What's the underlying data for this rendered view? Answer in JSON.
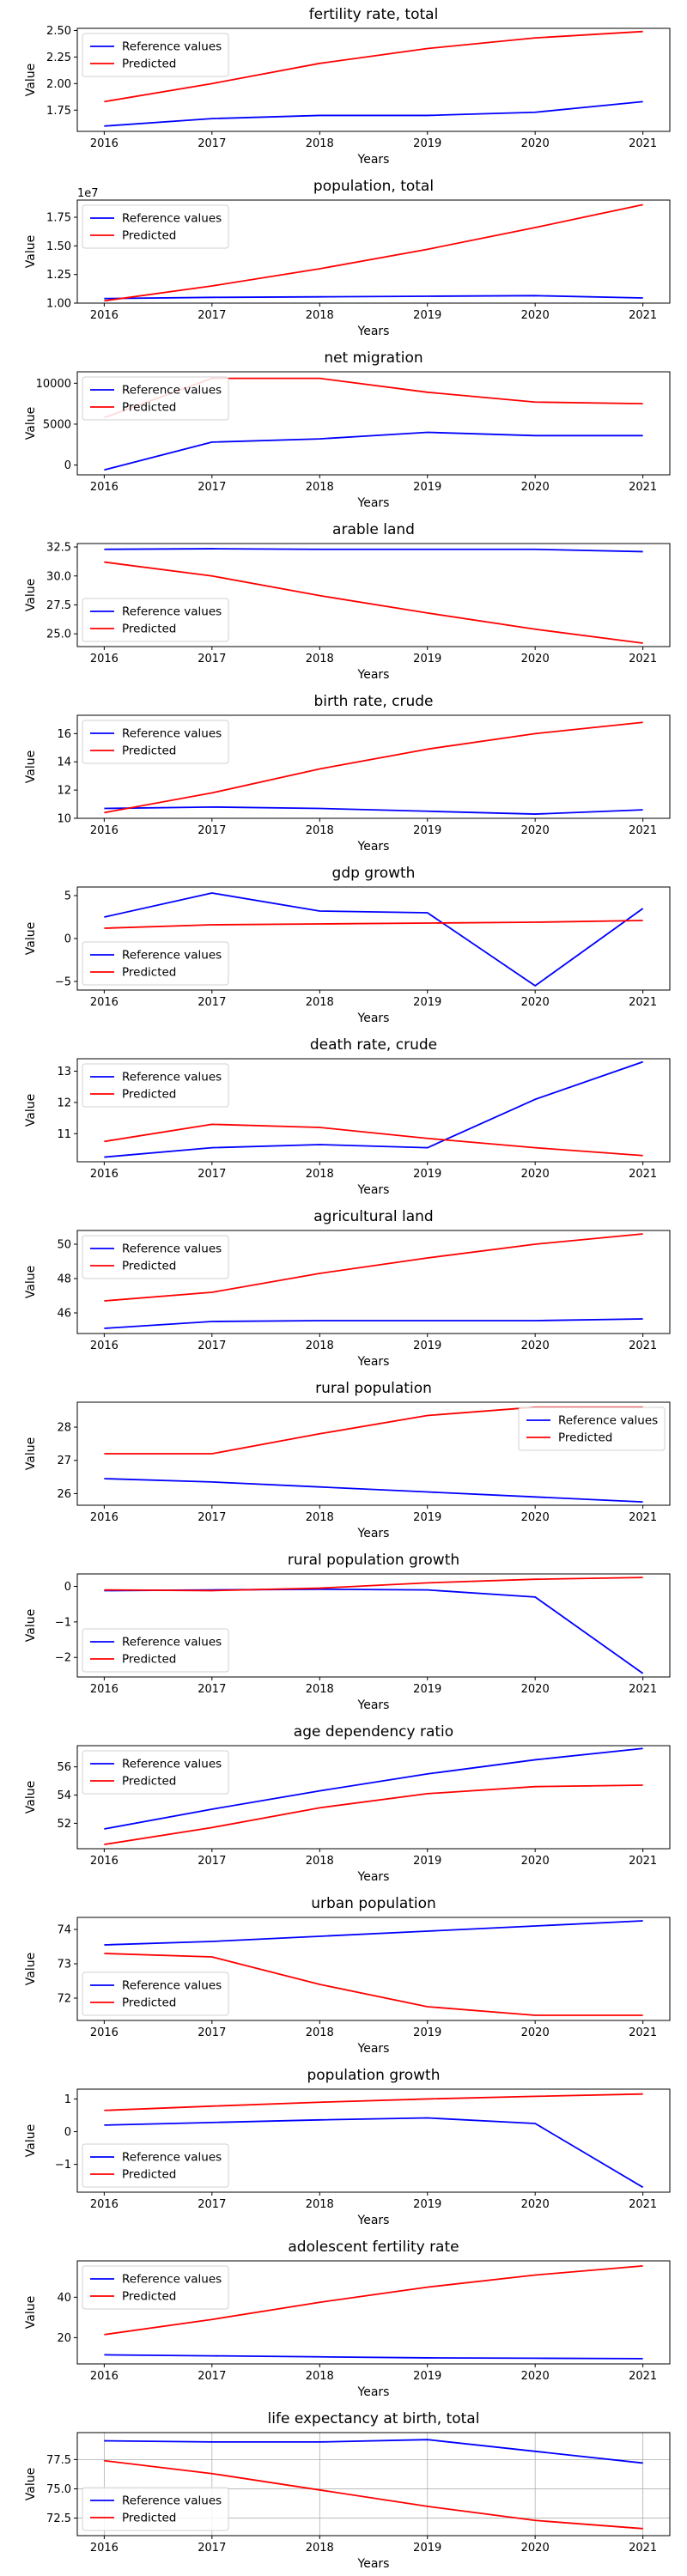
{
  "colors": {
    "reference": "#0000ff",
    "predicted": "#ff0000"
  },
  "chart_data": [
    {
      "type": "line",
      "title": "fertility rate, total",
      "xlabel": "Years",
      "ylabel": "Value",
      "x": [
        2016,
        2017,
        2018,
        2019,
        2020,
        2021
      ],
      "ylim": [
        1.55,
        2.52
      ],
      "yticks": [
        1.75,
        2.0,
        2.25,
        2.5
      ],
      "ytick_labels": [
        "1.75",
        "2.00",
        "2.25",
        "2.50"
      ],
      "legend": "upper left",
      "grid": false,
      "series": [
        {
          "name": "Reference values",
          "color": "reference",
          "values": [
            1.6,
            1.67,
            1.7,
            1.7,
            1.73,
            1.83
          ]
        },
        {
          "name": "Predicted",
          "color": "predicted",
          "values": [
            1.83,
            2.0,
            2.19,
            2.33,
            2.43,
            2.49
          ]
        }
      ]
    },
    {
      "type": "line",
      "title": "population, total",
      "xlabel": "Years",
      "ylabel": "Value",
      "x": [
        2016,
        2017,
        2018,
        2019,
        2020,
        2021
      ],
      "ylim": [
        1.0,
        1.9
      ],
      "offset": "1e7",
      "yticks": [
        1.0,
        1.25,
        1.5,
        1.75
      ],
      "ytick_labels": [
        "1.00",
        "1.25",
        "1.50",
        "1.75"
      ],
      "legend": "upper left",
      "grid": false,
      "series": [
        {
          "name": "Reference values",
          "color": "reference",
          "values": [
            1.04,
            1.05,
            1.055,
            1.06,
            1.065,
            1.045
          ]
        },
        {
          "name": "Predicted",
          "color": "predicted",
          "values": [
            1.02,
            1.15,
            1.3,
            1.47,
            1.66,
            1.86
          ]
        }
      ]
    },
    {
      "type": "line",
      "title": "net migration",
      "xlabel": "Years",
      "ylabel": "Value",
      "x": [
        2016,
        2017,
        2018,
        2019,
        2020,
        2021
      ],
      "ylim": [
        -1200,
        11400
      ],
      "yticks": [
        0,
        5000,
        10000
      ],
      "ytick_labels": [
        "0",
        "5000",
        "10000"
      ],
      "legend": "upper left",
      "grid": false,
      "series": [
        {
          "name": "Reference values",
          "color": "reference",
          "values": [
            -600,
            2800,
            3200,
            4000,
            3600,
            3600
          ]
        },
        {
          "name": "Predicted",
          "color": "predicted",
          "values": [
            5800,
            10600,
            10600,
            8900,
            7700,
            7500
          ]
        }
      ]
    },
    {
      "type": "line",
      "title": "arable land",
      "xlabel": "Years",
      "ylabel": "Value",
      "x": [
        2016,
        2017,
        2018,
        2019,
        2020,
        2021
      ],
      "ylim": [
        23.9,
        32.8
      ],
      "yticks": [
        25.0,
        27.5,
        30.0,
        32.5
      ],
      "ytick_labels": [
        "25.0",
        "27.5",
        "30.0",
        "32.5"
      ],
      "legend": "lower left",
      "grid": false,
      "series": [
        {
          "name": "Reference values",
          "color": "reference",
          "values": [
            32.3,
            32.35,
            32.3,
            32.3,
            32.3,
            32.1
          ]
        },
        {
          "name": "Predicted",
          "color": "predicted",
          "values": [
            31.2,
            30.0,
            28.3,
            26.8,
            25.4,
            24.2
          ]
        }
      ]
    },
    {
      "type": "line",
      "title": "birth rate, crude",
      "xlabel": "Years",
      "ylabel": "Value",
      "x": [
        2016,
        2017,
        2018,
        2019,
        2020,
        2021
      ],
      "ylim": [
        10.0,
        17.3
      ],
      "yticks": [
        10,
        12,
        14,
        16
      ],
      "ytick_labels": [
        "10",
        "12",
        "14",
        "16"
      ],
      "legend": "upper left",
      "grid": false,
      "series": [
        {
          "name": "Reference values",
          "color": "reference",
          "values": [
            10.7,
            10.8,
            10.7,
            10.5,
            10.3,
            10.6
          ]
        },
        {
          "name": "Predicted",
          "color": "predicted",
          "values": [
            10.4,
            11.8,
            13.5,
            14.9,
            16.0,
            16.8
          ]
        }
      ]
    },
    {
      "type": "line",
      "title": "gdp growth",
      "xlabel": "Years",
      "ylabel": "Value",
      "x": [
        2016,
        2017,
        2018,
        2019,
        2020,
        2021
      ],
      "ylim": [
        -6.0,
        6.0
      ],
      "yticks": [
        -5,
        0,
        5
      ],
      "ytick_labels": [
        "−5",
        "0",
        "5"
      ],
      "legend": "lower left",
      "grid": false,
      "series": [
        {
          "name": "Reference values",
          "color": "reference",
          "values": [
            2.5,
            5.3,
            3.2,
            3.0,
            -5.5,
            3.5
          ]
        },
        {
          "name": "Predicted",
          "color": "predicted",
          "values": [
            1.2,
            1.6,
            1.7,
            1.8,
            1.9,
            2.1
          ]
        }
      ]
    },
    {
      "type": "line",
      "title": "death rate, crude",
      "xlabel": "Years",
      "ylabel": "Value",
      "x": [
        2016,
        2017,
        2018,
        2019,
        2020,
        2021
      ],
      "ylim": [
        10.1,
        13.4
      ],
      "yticks": [
        11,
        12,
        13
      ],
      "ytick_labels": [
        "11",
        "12",
        "13"
      ],
      "legend": "upper left",
      "grid": false,
      "series": [
        {
          "name": "Reference values",
          "color": "reference",
          "values": [
            10.25,
            10.55,
            10.65,
            10.55,
            12.1,
            13.3
          ]
        },
        {
          "name": "Predicted",
          "color": "predicted",
          "values": [
            10.75,
            11.3,
            11.2,
            10.85,
            10.55,
            10.3
          ]
        }
      ]
    },
    {
      "type": "line",
      "title": "agricultural land",
      "xlabel": "Years",
      "ylabel": "Value",
      "x": [
        2016,
        2017,
        2018,
        2019,
        2020,
        2021
      ],
      "ylim": [
        44.8,
        50.8
      ],
      "yticks": [
        46,
        48,
        50
      ],
      "ytick_labels": [
        "46",
        "48",
        "50"
      ],
      "legend": "upper left",
      "grid": false,
      "series": [
        {
          "name": "Reference values",
          "color": "reference",
          "values": [
            45.1,
            45.5,
            45.55,
            45.55,
            45.55,
            45.65
          ]
        },
        {
          "name": "Predicted",
          "color": "predicted",
          "values": [
            46.7,
            47.2,
            48.3,
            49.2,
            50.0,
            50.6
          ]
        }
      ]
    },
    {
      "type": "line",
      "title": "rural population",
      "xlabel": "Years",
      "ylabel": "Value",
      "x": [
        2016,
        2017,
        2018,
        2019,
        2020,
        2021
      ],
      "ylim": [
        25.65,
        28.75
      ],
      "yticks": [
        26,
        27,
        28
      ],
      "ytick_labels": [
        "26",
        "27",
        "28"
      ],
      "legend": "upper right",
      "grid": false,
      "series": [
        {
          "name": "Reference values",
          "color": "reference",
          "values": [
            26.45,
            26.35,
            26.2,
            26.05,
            25.9,
            25.75
          ]
        },
        {
          "name": "Predicted",
          "color": "predicted",
          "values": [
            27.2,
            27.2,
            27.8,
            28.35,
            28.6,
            28.6
          ]
        }
      ]
    },
    {
      "type": "line",
      "title": "rural population growth",
      "xlabel": "Years",
      "ylabel": "Value",
      "x": [
        2016,
        2017,
        2018,
        2019,
        2020,
        2021
      ],
      "ylim": [
        -2.55,
        0.35
      ],
      "yticks": [
        -2,
        -1,
        0
      ],
      "ytick_labels": [
        "−2",
        "−1",
        "0"
      ],
      "legend": "lower left",
      "grid": false,
      "series": [
        {
          "name": "Reference values",
          "color": "reference",
          "values": [
            -0.12,
            -0.1,
            -0.08,
            -0.1,
            -0.3,
            -2.45
          ]
        },
        {
          "name": "Predicted",
          "color": "predicted",
          "values": [
            -0.1,
            -0.12,
            -0.05,
            0.1,
            0.2,
            0.25
          ]
        }
      ]
    },
    {
      "type": "line",
      "title": "age dependency ratio",
      "xlabel": "Years",
      "ylabel": "Value",
      "x": [
        2016,
        2017,
        2018,
        2019,
        2020,
        2021
      ],
      "ylim": [
        50.2,
        57.5
      ],
      "yticks": [
        52,
        54,
        56
      ],
      "ytick_labels": [
        "52",
        "54",
        "56"
      ],
      "legend": "upper left",
      "grid": false,
      "series": [
        {
          "name": "Reference values",
          "color": "reference",
          "values": [
            51.6,
            53.0,
            54.3,
            55.5,
            56.5,
            57.3
          ]
        },
        {
          "name": "Predicted",
          "color": "predicted",
          "values": [
            50.5,
            51.7,
            53.1,
            54.1,
            54.6,
            54.7
          ]
        }
      ]
    },
    {
      "type": "line",
      "title": "urban population",
      "xlabel": "Years",
      "ylabel": "Value",
      "x": [
        2016,
        2017,
        2018,
        2019,
        2020,
        2021
      ],
      "ylim": [
        71.35,
        74.35
      ],
      "yticks": [
        72,
        73,
        74
      ],
      "ytick_labels": [
        "72",
        "73",
        "74"
      ],
      "legend": "lower left",
      "grid": false,
      "series": [
        {
          "name": "Reference values",
          "color": "reference",
          "values": [
            73.55,
            73.65,
            73.8,
            73.95,
            74.1,
            74.25
          ]
        },
        {
          "name": "Predicted",
          "color": "predicted",
          "values": [
            73.3,
            73.2,
            72.4,
            71.75,
            71.5,
            71.5
          ]
        }
      ]
    },
    {
      "type": "line",
      "title": "population growth",
      "xlabel": "Years",
      "ylabel": "Value",
      "x": [
        2016,
        2017,
        2018,
        2019,
        2020,
        2021
      ],
      "ylim": [
        -1.85,
        1.3
      ],
      "yticks": [
        -1,
        0,
        1
      ],
      "ytick_labels": [
        "−1",
        "0",
        "1"
      ],
      "legend": "lower left",
      "grid": false,
      "series": [
        {
          "name": "Reference values",
          "color": "reference",
          "values": [
            0.2,
            0.28,
            0.36,
            0.42,
            0.25,
            -1.7
          ]
        },
        {
          "name": "Predicted",
          "color": "predicted",
          "values": [
            0.65,
            0.78,
            0.9,
            1.0,
            1.08,
            1.15
          ]
        }
      ]
    },
    {
      "type": "line",
      "title": "adolescent fertility rate",
      "xlabel": "Years",
      "ylabel": "Value",
      "x": [
        2016,
        2017,
        2018,
        2019,
        2020,
        2021
      ],
      "ylim": [
        7.0,
        58.0
      ],
      "yticks": [
        20,
        40
      ],
      "ytick_labels": [
        "20",
        "40"
      ],
      "legend": "upper left",
      "grid": false,
      "series": [
        {
          "name": "Reference values",
          "color": "reference",
          "values": [
            11.5,
            11.0,
            10.5,
            10.0,
            9.8,
            9.6
          ]
        },
        {
          "name": "Predicted",
          "color": "predicted",
          "values": [
            21.5,
            29.0,
            37.5,
            45.0,
            51.0,
            55.5
          ]
        }
      ]
    },
    {
      "type": "line",
      "title": "life expectancy at birth, total",
      "xlabel": "Years",
      "ylabel": "Value",
      "x": [
        2016,
        2017,
        2018,
        2019,
        2020,
        2021
      ],
      "ylim": [
        71.0,
        79.8
      ],
      "yticks": [
        72.5,
        75.0,
        77.5
      ],
      "ytick_labels": [
        "72.5",
        "75.0",
        "77.5"
      ],
      "legend": "lower left",
      "grid": true,
      "series": [
        {
          "name": "Reference values",
          "color": "reference",
          "values": [
            79.1,
            79.0,
            79.0,
            79.2,
            78.2,
            77.2
          ]
        },
        {
          "name": "Predicted",
          "color": "predicted",
          "values": [
            77.4,
            76.3,
            74.9,
            73.5,
            72.3,
            71.6
          ]
        }
      ]
    }
  ]
}
